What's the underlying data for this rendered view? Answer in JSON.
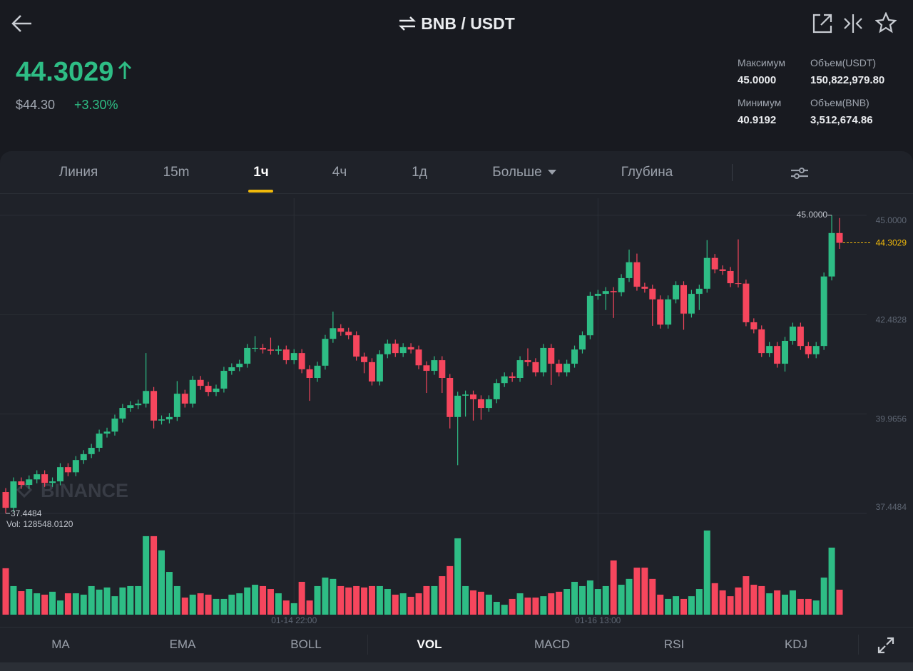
{
  "header": {
    "pair": "BNB / USDT"
  },
  "price": {
    "last": "44.3029",
    "fiat": "$44.30",
    "change": "+3.30%"
  },
  "stats": [
    {
      "label": "Максимум",
      "value": "45.0000"
    },
    {
      "label": "Объем(USDT)",
      "value": "150,822,979.80"
    },
    {
      "label": "Минимум",
      "value": "40.9192"
    },
    {
      "label": "Объем(BNB)",
      "value": "3,512,674.86"
    }
  ],
  "tabs": [
    "Линия",
    "15m",
    "1ч",
    "4ч",
    "1д",
    "Больше",
    "Глубина"
  ],
  "indicators": [
    "MA",
    "EMA",
    "BOLL",
    "VOL",
    "MACD",
    "RSI",
    "KDJ"
  ],
  "chart_data": {
    "type": "candlestick",
    "watermark": "BINANCE",
    "up_color": "#2ebd85",
    "down_color": "#f6465d",
    "last_price_color": "#f0b90b",
    "ylim": [
      37.4484,
      45.54
    ],
    "yticks": [
      {
        "value": 45,
        "label": "45.0000"
      },
      {
        "value": 42.4828,
        "label": "42.4828"
      },
      {
        "value": 39.9656,
        "label": "39.9656"
      },
      {
        "value": 37.4484,
        "label": "37.4484"
      }
    ],
    "grid": true,
    "high_label": "45.0000",
    "low_label": "37.4484",
    "last_price_label": "44.3029",
    "volume_label": "Vol: 128548.0120",
    "categories": [
      null,
      null,
      null,
      null,
      null,
      null,
      null,
      null,
      null,
      null,
      null,
      null,
      null,
      null,
      null,
      null,
      null,
      null,
      null,
      null,
      null,
      null,
      null,
      null,
      null,
      null,
      null,
      null,
      null,
      null,
      null,
      null,
      null,
      null,
      null,
      null,
      null,
      "01-14 22:00",
      null,
      null,
      null,
      null,
      null,
      null,
      null,
      null,
      null,
      null,
      null,
      null,
      null,
      null,
      null,
      null,
      null,
      null,
      null,
      null,
      null,
      null,
      null,
      null,
      null,
      null,
      null,
      null,
      null,
      null,
      null,
      null,
      null,
      null,
      null,
      null,
      null,
      null,
      "01-16 13:00",
      null,
      null,
      null,
      null,
      null,
      null,
      null,
      null,
      null,
      null,
      null,
      null,
      null,
      null,
      null,
      null,
      null,
      null,
      null,
      null,
      null,
      null,
      null,
      null,
      null,
      null,
      null,
      null,
      null,
      null,
      null
    ],
    "open": [
      37.99,
      37.59,
      38.26,
      38.17,
      38.31,
      38.44,
      38.22,
      38.26,
      38.62,
      38.49,
      38.8,
      38.95,
      39.11,
      39.47,
      39.52,
      39.85,
      40.12,
      40.19,
      40.23,
      40.55,
      39.8,
      39.83,
      39.89,
      40.48,
      40.23,
      40.83,
      40.68,
      40.52,
      40.61,
      41.06,
      41.15,
      41.24,
      41.64,
      41.64,
      41.6,
      41.57,
      41.6,
      41.33,
      41.51,
      41.1,
      40.88,
      41.19,
      41.87,
      42.14,
      42.05,
      41.96,
      41.42,
      41.28,
      40.79,
      41.48,
      41.75,
      41.51,
      41.66,
      41.6,
      41.2,
      41.06,
      41.33,
      40.88,
      39.89,
      40.43,
      40.46,
      40.34,
      40.12,
      40.34,
      40.75,
      40.92,
      40.88,
      41.33,
      41.28,
      41.02,
      41.64,
      41.24,
      41.02,
      41.24,
      41.6,
      41.96,
      42.96,
      43.01,
      43.08,
      43.05,
      43.41,
      43.81,
      43.19,
      43.14,
      42.87,
      42.23,
      42.87,
      43.23,
      42.51,
      43.01,
      43.14,
      43.92,
      43.63,
      43.59,
      43.28,
      43.27,
      42.29,
      42.11,
      41.51,
      41.69,
      41.24,
      41.82,
      42.18,
      41.69,
      41.48,
      41.69,
      43.45,
      44.55
    ],
    "high": [
      38.09,
      38.36,
      38.36,
      38.41,
      38.54,
      38.54,
      38.36,
      38.72,
      38.72,
      38.9,
      39.05,
      39.21,
      39.57,
      39.62,
      39.95,
      40.22,
      40.29,
      40.33,
      41.51,
      40.65,
      39.93,
      39.99,
      40.8,
      40.58,
      40.93,
      40.93,
      40.78,
      40.71,
      41.16,
      41.25,
      41.34,
      41.74,
      41.94,
      41.74,
      41.9,
      41.7,
      41.7,
      41.61,
      41.61,
      41.2,
      41.29,
      41.97,
      42.56,
      42.24,
      42.15,
      42.06,
      41.52,
      41.38,
      41.58,
      41.85,
      41.85,
      41.76,
      41.76,
      41.7,
      41.3,
      41.43,
      41.43,
      40.98,
      40.53,
      40.56,
      40.56,
      40.44,
      40.44,
      40.85,
      41.02,
      41.02,
      41.43,
      41.63,
      41.38,
      41.74,
      41.74,
      41.34,
      41.34,
      41.7,
      42.06,
      43.06,
      43.11,
      43.18,
      43.18,
      43.51,
      44.13,
      44.03,
      43.29,
      43.24,
      42.97,
      42.97,
      43.33,
      43.33,
      43.11,
      43.24,
      44.37,
      44.02,
      43.73,
      43.69,
      44.39,
      43.37,
      42.39,
      42.21,
      41.79,
      41.79,
      41.92,
      42.28,
      42.28,
      41.79,
      41.79,
      43.55,
      45,
      44.93
    ],
    "low": [
      37.4484,
      37.49,
      38.07,
      38.07,
      38.21,
      38.12,
      38.12,
      38.16,
      38.39,
      38.39,
      38.7,
      38.85,
      39.01,
      39.37,
      39.42,
      39.75,
      40.02,
      40.09,
      40.13,
      39.6,
      39.7,
      39.73,
      39.79,
      40.13,
      40.13,
      40.58,
      40.42,
      40.42,
      40.51,
      40.96,
      41.05,
      41.14,
      41.54,
      41.5,
      41.47,
      41.47,
      41.23,
      41.23,
      41.0,
      40.3,
      40.78,
      41.09,
      41.77,
      41.95,
      41.86,
      41.32,
      41.0,
      40.69,
      40.69,
      41.38,
      41.41,
      41.41,
      41.5,
      41.1,
      40.5,
      40.96,
      40.5,
      39.6,
      38.67,
      39.9,
      39.8,
      39.82,
      40.02,
      40.24,
      40.65,
      40.78,
      40.78,
      41.18,
      40.92,
      40.92,
      40.7,
      40.92,
      40.92,
      41.14,
      41.5,
      41.86,
      42.86,
      42.6,
      42.4,
      42.95,
      43.31,
      43.09,
      43.04,
      42.2,
      42.13,
      42.13,
      42.77,
      42.1,
      42.41,
      42.6,
      43.04,
      43.53,
      43.49,
      43.18,
      43.17,
      42.19,
      42.01,
      41.41,
      41.41,
      41.14,
      41.04,
      41.72,
      41.59,
      41.38,
      41.38,
      41.59,
      43.35,
      44.15
    ],
    "close": [
      37.59,
      38.26,
      38.17,
      38.31,
      38.44,
      38.22,
      38.26,
      38.62,
      38.49,
      38.8,
      38.95,
      39.11,
      39.47,
      39.52,
      39.85,
      40.12,
      40.19,
      40.23,
      40.55,
      39.8,
      39.83,
      39.89,
      40.48,
      40.23,
      40.83,
      40.68,
      40.52,
      40.61,
      41.06,
      41.15,
      41.24,
      41.64,
      41.64,
      41.6,
      41.57,
      41.6,
      41.33,
      41.51,
      41.1,
      40.88,
      41.19,
      41.87,
      42.14,
      42.05,
      41.96,
      41.42,
      41.28,
      40.79,
      41.48,
      41.75,
      41.51,
      41.66,
      41.6,
      41.2,
      41.06,
      41.33,
      40.88,
      39.89,
      40.43,
      40.46,
      40.34,
      40.12,
      40.34,
      40.75,
      40.92,
      40.88,
      41.33,
      41.28,
      41.02,
      41.64,
      41.24,
      41.02,
      41.24,
      41.6,
      41.96,
      42.96,
      43.01,
      43.08,
      43.05,
      43.41,
      43.81,
      43.19,
      43.14,
      42.87,
      42.23,
      42.87,
      43.23,
      42.51,
      43.01,
      43.14,
      43.92,
      43.63,
      43.59,
      43.28,
      43.27,
      42.29,
      42.11,
      41.51,
      41.69,
      41.24,
      41.82,
      42.18,
      41.69,
      41.48,
      41.69,
      43.45,
      44.55,
      44.3029
    ],
    "volumes": [
      239000,
      147000,
      121000,
      132000,
      110000,
      103000,
      118000,
      73000,
      110000,
      110000,
      103000,
      147000,
      129000,
      140000,
      95000,
      140000,
      147000,
      147000,
      404000,
      404000,
      331000,
      220000,
      147000,
      88000,
      103000,
      110000,
      103000,
      81000,
      81000,
      103000,
      110000,
      140000,
      154000,
      147000,
      132000,
      110000,
      73000,
      59000,
      169000,
      73000,
      147000,
      191000,
      184000,
      147000,
      140000,
      147000,
      140000,
      147000,
      147000,
      132000,
      103000,
      110000,
      92000,
      110000,
      147000,
      147000,
      198000,
      250000,
      393000,
      147000,
      125000,
      118000,
      103000,
      66000,
      51000,
      81000,
      110000,
      88000,
      88000,
      95000,
      110000,
      118000,
      132000,
      169000,
      147000,
      176000,
      132000,
      147000,
      279000,
      154000,
      184000,
      242000,
      242000,
      184000,
      103000,
      81000,
      95000,
      81000,
      95000,
      132000,
      433000,
      162000,
      125000,
      95000,
      140000,
      198000,
      154000,
      147000,
      110000,
      125000,
      103000,
      125000,
      81000,
      81000,
      73000,
      191000,
      345000,
      128548.012
    ]
  }
}
